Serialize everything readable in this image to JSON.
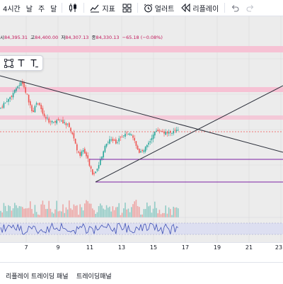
{
  "toolbar": {
    "timeframes": [
      "4시간",
      "날",
      "주",
      "달"
    ],
    "indicators_label": "지표",
    "alerts_label": "얼러트",
    "replay_label": "리플레이",
    "undo_icon": "undo-icon",
    "redo_icon": "redo-icon"
  },
  "ohlc": {
    "open_label": "시",
    "open": "84,395.31",
    "high_label": "고",
    "high": "84,400.00",
    "low_label": "저",
    "low": "84,307.13",
    "close_label": "종",
    "close": "84,330.13",
    "change": "−65.18 (−0.08%)"
  },
  "drawing_tools": [
    "rectangle-tool-icon",
    "text-tool-icon",
    "text-note-tool-icon"
  ],
  "time_axis": [
    "7",
    "9",
    "11",
    "13",
    "15",
    "17",
    "19",
    "21",
    "23"
  ],
  "bottom_tabs": [
    "리플레이 트레이딩 패널",
    "트레이딩패널"
  ],
  "colors": {
    "up": "#26a69a",
    "down": "#ef5350",
    "trendline": "#2a2e39",
    "support": "#7b1fa2",
    "resistance_band": "#f8bbd0",
    "rsi": "#3f51b5"
  }
}
